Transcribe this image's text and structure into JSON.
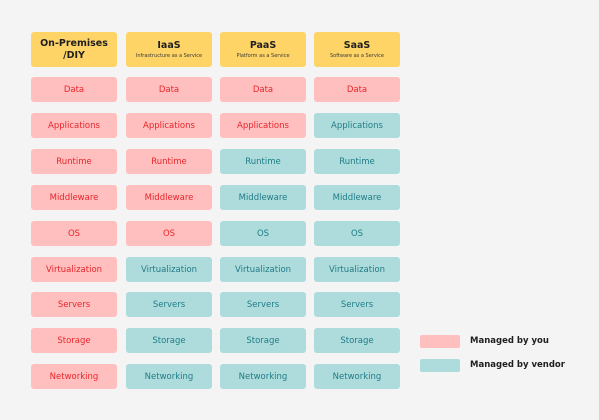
{
  "columns": [
    {
      "title": "On-Premises\n/DIY",
      "subtitle": ""
    },
    {
      "title": "IaaS",
      "subtitle": "Infrastructure as a Service"
    },
    {
      "title": "PaaS",
      "subtitle": "Platform as a Service"
    },
    {
      "title": "SaaS",
      "subtitle": "Software as a Service"
    }
  ],
  "layers": [
    "Data",
    "Applications",
    "Runtime",
    "Middleware",
    "OS",
    "Virtualization",
    "Servers",
    "Storage",
    "Networking"
  ],
  "responsibility": [
    [
      "you",
      "you",
      "you",
      "you",
      "you",
      "you",
      "you",
      "you",
      "you"
    ],
    [
      "you",
      "you",
      "you",
      "you",
      "you",
      "vendor",
      "vendor",
      "vendor",
      "vendor"
    ],
    [
      "you",
      "you",
      "vendor",
      "vendor",
      "vendor",
      "vendor",
      "vendor",
      "vendor",
      "vendor"
    ],
    [
      "you",
      "vendor",
      "vendor",
      "vendor",
      "vendor",
      "vendor",
      "vendor",
      "vendor",
      "vendor"
    ]
  ],
  "legend": {
    "you_label": "Managed by you",
    "vendor_label": "Managed by vendor"
  },
  "colors": {
    "header": "#ffd466",
    "you_fill": "#ffbfbe",
    "you_text": "#e8262c",
    "vendor_fill": "#aedcdc",
    "vendor_text": "#1f7c86"
  }
}
